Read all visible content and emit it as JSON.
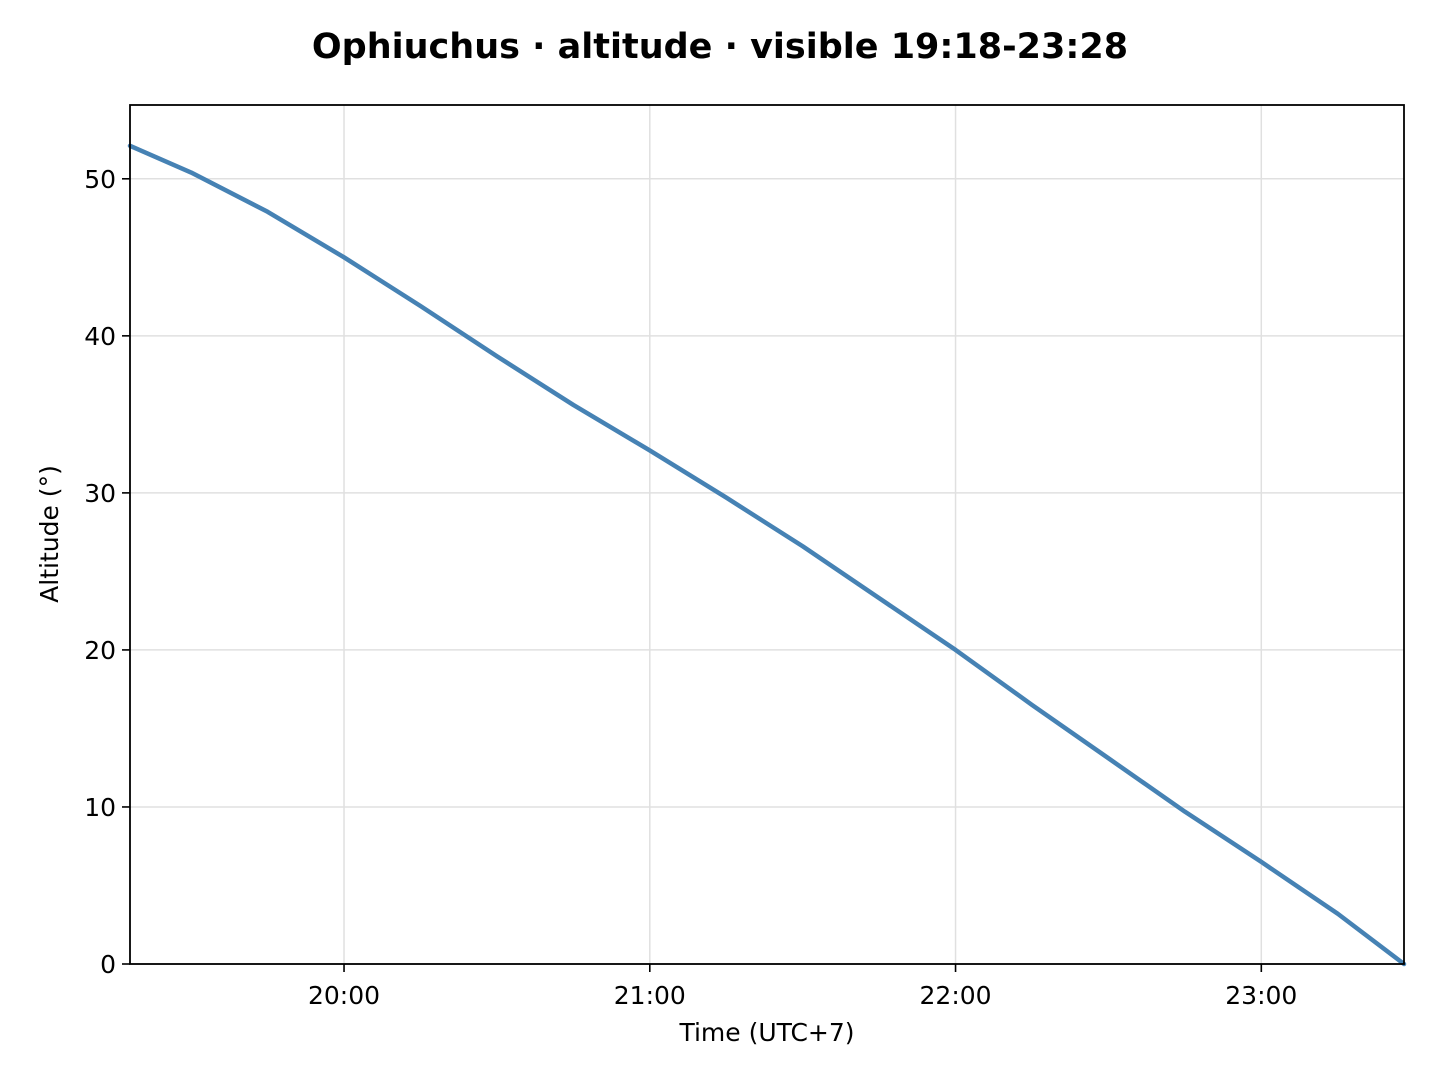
{
  "chart_data": {
    "type": "line",
    "title": "Ophiuchus · altitude · visible 19:18-23:28",
    "xlabel": "Time (UTC+7)",
    "ylabel": "Altitude (°)",
    "xlim": [
      "19:18",
      "23:28"
    ],
    "ylim": [
      0,
      54.7
    ],
    "x_ticks": [
      "20:00",
      "21:00",
      "22:00",
      "23:00"
    ],
    "y_ticks": [
      0,
      10,
      20,
      30,
      40,
      50
    ],
    "grid": true,
    "legend": "none",
    "line_color": "#4682b4",
    "series": [
      {
        "x": [
          "19:18",
          "19:30",
          "19:45",
          "20:00",
          "20:15",
          "20:30",
          "20:45",
          "21:00",
          "21:15",
          "21:30",
          "21:45",
          "22:00",
          "22:15",
          "22:30",
          "22:45",
          "23:00",
          "23:15",
          "23:28"
        ],
        "values": [
          52.1,
          50.4,
          47.9,
          45.0,
          41.9,
          38.7,
          35.6,
          32.7,
          29.7,
          26.6,
          23.3,
          20.0,
          16.5,
          13.1,
          9.7,
          6.5,
          3.2,
          0.0
        ]
      }
    ]
  }
}
